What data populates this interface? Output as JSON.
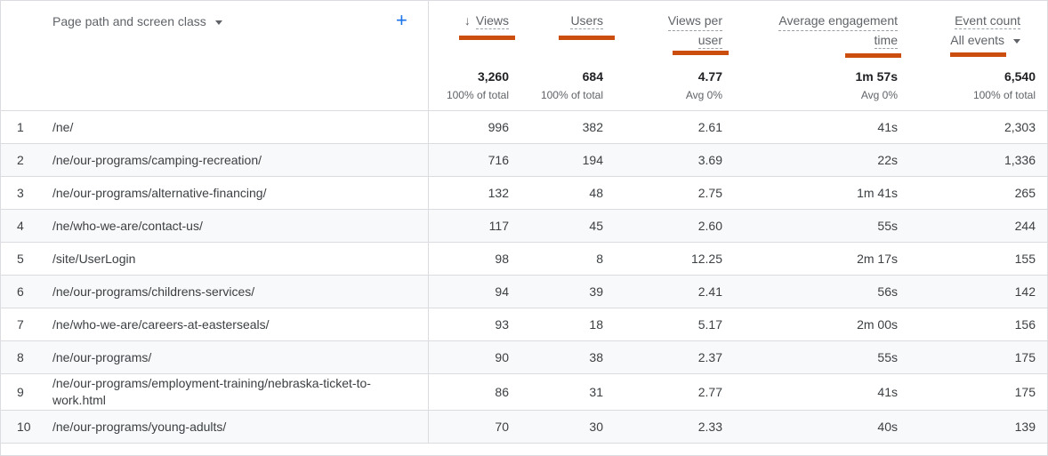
{
  "header": {
    "dimension_label": "Page path and screen class",
    "add_icon": "plus-icon",
    "dropdown_icon": "caret-down-icon",
    "sort_icon": "arrow-down-icon",
    "sort_arrow": "↓",
    "plus_glyph": "+",
    "columns": {
      "views": "Views",
      "users": "Users",
      "views_per_user_1": "Views per",
      "views_per_user_2": "user",
      "avg_engagement_1": "Average engagement",
      "avg_engagement_2": "time",
      "event_count": "Event count",
      "event_filter": "All events"
    },
    "accent_underline_color": "#cc4e0e"
  },
  "totals": {
    "views": "3,260",
    "views_sub": "100% of total",
    "users": "684",
    "users_sub": "100% of total",
    "views_per_user": "4.77",
    "views_per_user_sub": "Avg 0%",
    "avg_engagement": "1m 57s",
    "avg_engagement_sub": "Avg 0%",
    "event_count": "6,540",
    "event_count_sub": "100% of total"
  },
  "rows": [
    {
      "n": "1",
      "path": "/ne/",
      "views": "996",
      "users": "382",
      "vpu": "2.61",
      "aet": "41s",
      "events": "2,303"
    },
    {
      "n": "2",
      "path": "/ne/our-programs/camping-recreation/",
      "views": "716",
      "users": "194",
      "vpu": "3.69",
      "aet": "22s",
      "events": "1,336"
    },
    {
      "n": "3",
      "path": "/ne/our-programs/alternative-financing/",
      "views": "132",
      "users": "48",
      "vpu": "2.75",
      "aet": "1m 41s",
      "events": "265"
    },
    {
      "n": "4",
      "path": "/ne/who-we-are/contact-us/",
      "views": "117",
      "users": "45",
      "vpu": "2.60",
      "aet": "55s",
      "events": "244"
    },
    {
      "n": "5",
      "path": "/site/UserLogin",
      "views": "98",
      "users": "8",
      "vpu": "12.25",
      "aet": "2m 17s",
      "events": "155"
    },
    {
      "n": "6",
      "path": "/ne/our-programs/childrens-services/",
      "views": "94",
      "users": "39",
      "vpu": "2.41",
      "aet": "56s",
      "events": "142"
    },
    {
      "n": "7",
      "path": "/ne/who-we-are/careers-at-easterseals/",
      "views": "93",
      "users": "18",
      "vpu": "5.17",
      "aet": "2m 00s",
      "events": "156"
    },
    {
      "n": "8",
      "path": "/ne/our-programs/",
      "views": "90",
      "users": "38",
      "vpu": "2.37",
      "aet": "55s",
      "events": "175"
    },
    {
      "n": "9",
      "path": "/ne/our-programs/employment-training/nebraska-ticket-to-work.html",
      "views": "86",
      "users": "31",
      "vpu": "2.77",
      "aet": "41s",
      "events": "175"
    },
    {
      "n": "10",
      "path": "/ne/our-programs/young-adults/",
      "views": "70",
      "users": "30",
      "vpu": "2.33",
      "aet": "40s",
      "events": "139"
    }
  ]
}
